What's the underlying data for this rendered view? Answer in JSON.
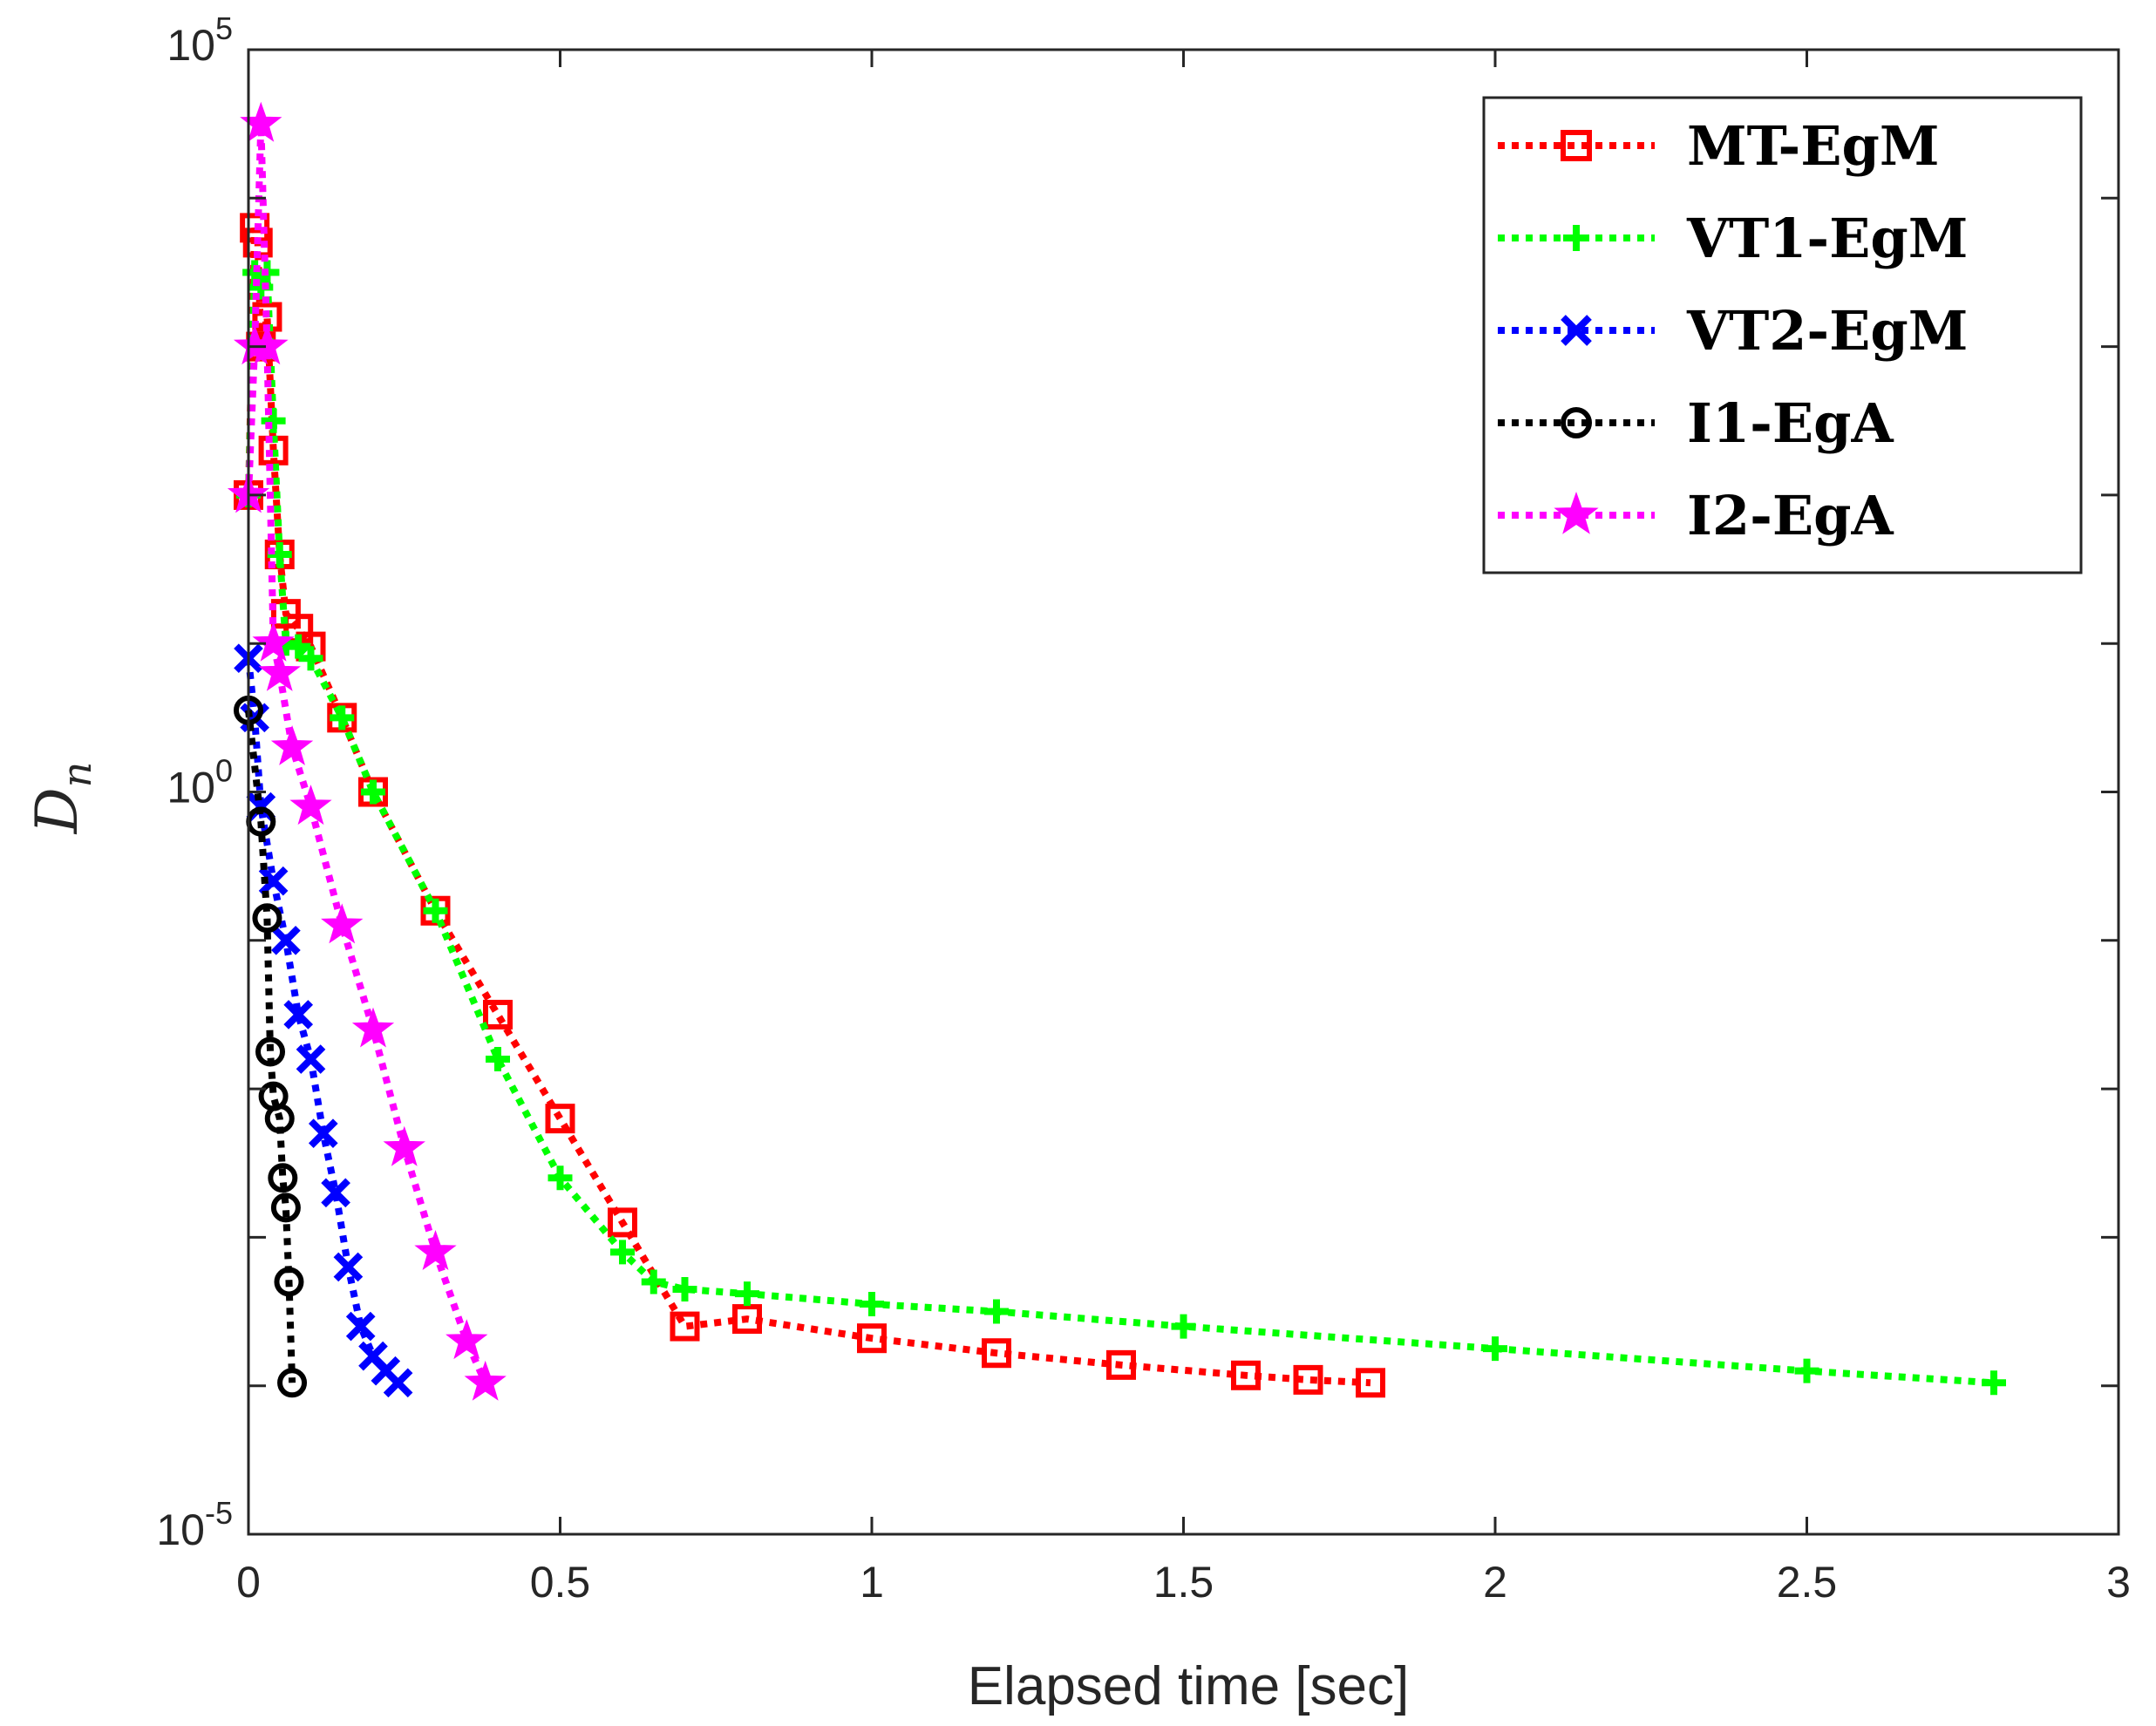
{
  "chart_data": {
    "type": "line",
    "title": "",
    "xlabel": "Elapsed time [sec]",
    "ylabel": {
      "base": "D",
      "subscript": "n"
    },
    "xlim": [
      0,
      3
    ],
    "ylim_log10": [
      -5,
      5
    ],
    "yscale": "log",
    "x_ticks": [
      0,
      0.5,
      1,
      1.5,
      2,
      2.5,
      3
    ],
    "x_tick_labels": [
      "0",
      "0.5",
      "1",
      "1.5",
      "2",
      "2.5",
      "3"
    ],
    "y_ticks_log10": [
      -5,
      0,
      5
    ],
    "y_tick_labels": [
      {
        "base": "10",
        "exp": "-5"
      },
      {
        "base": "10",
        "exp": "0"
      },
      {
        "base": "10",
        "exp": "5"
      }
    ],
    "legend_position": "top-right",
    "series": [
      {
        "name": "MT-EgM",
        "color": "#ff0000",
        "marker": "square",
        "x": [
          0.0,
          0.01,
          0.015,
          0.02,
          0.03,
          0.04,
          0.05,
          0.06,
          0.08,
          0.1,
          0.15,
          0.2,
          0.3,
          0.4,
          0.5,
          0.6,
          0.7,
          0.8,
          1.0,
          1.2,
          1.4,
          1.6,
          1.7,
          1.8
        ],
        "log10y": [
          2.0,
          3.8,
          3.7,
          3.0,
          3.2,
          2.3,
          1.6,
          1.2,
          1.1,
          0.98,
          0.5,
          0.0,
          -0.8,
          -1.5,
          -2.2,
          -2.9,
          -3.6,
          -3.55,
          -3.68,
          -3.78,
          -3.86,
          -3.93,
          -3.96,
          -3.98
        ]
      },
      {
        "name": "VT1-EgM",
        "color": "#00ff00",
        "marker": "plus",
        "x": [
          0.0,
          0.01,
          0.02,
          0.03,
          0.04,
          0.05,
          0.06,
          0.08,
          0.1,
          0.15,
          0.2,
          0.3,
          0.4,
          0.5,
          0.6,
          0.65,
          0.7,
          0.8,
          1.0,
          1.2,
          1.5,
          2.0,
          2.5,
          2.8
        ],
        "log10y": [
          2.0,
          3.5,
          3.4,
          3.5,
          2.5,
          1.6,
          1.0,
          0.98,
          0.9,
          0.5,
          0.0,
          -0.8,
          -1.8,
          -2.6,
          -3.1,
          -3.3,
          -3.35,
          -3.38,
          -3.45,
          -3.5,
          -3.6,
          -3.75,
          -3.9,
          -3.98
        ]
      },
      {
        "name": "VT2-EgM",
        "color": "#0000ff",
        "marker": "x",
        "x": [
          0.0,
          0.01,
          0.02,
          0.04,
          0.06,
          0.08,
          0.1,
          0.12,
          0.14,
          0.16,
          0.18,
          0.2,
          0.22,
          0.24
        ],
        "log10y": [
          0.9,
          0.5,
          -0.1,
          -0.6,
          -1.0,
          -1.5,
          -1.8,
          -2.3,
          -2.7,
          -3.2,
          -3.6,
          -3.8,
          -3.9,
          -3.98
        ]
      },
      {
        "name": "I1-EgA",
        "color": "#000000",
        "marker": "circle",
        "x": [
          0.0,
          0.02,
          0.03,
          0.035,
          0.04,
          0.05,
          0.055,
          0.06,
          0.065,
          0.07
        ],
        "log10y": [
          0.55,
          -0.2,
          -0.85,
          -1.75,
          -2.05,
          -2.2,
          -2.6,
          -2.8,
          -3.3,
          -3.98
        ]
      },
      {
        "name": "I2-EgA",
        "color": "#ff00ff",
        "marker": "star",
        "x": [
          0.0,
          0.01,
          0.02,
          0.03,
          0.04,
          0.05,
          0.07,
          0.1,
          0.15,
          0.2,
          0.25,
          0.3,
          0.35,
          0.38
        ],
        "log10y": [
          2.0,
          3.0,
          4.5,
          3.0,
          1.0,
          0.8,
          0.3,
          -0.1,
          -0.9,
          -1.6,
          -2.4,
          -3.1,
          -3.7,
          -3.98
        ]
      }
    ]
  }
}
